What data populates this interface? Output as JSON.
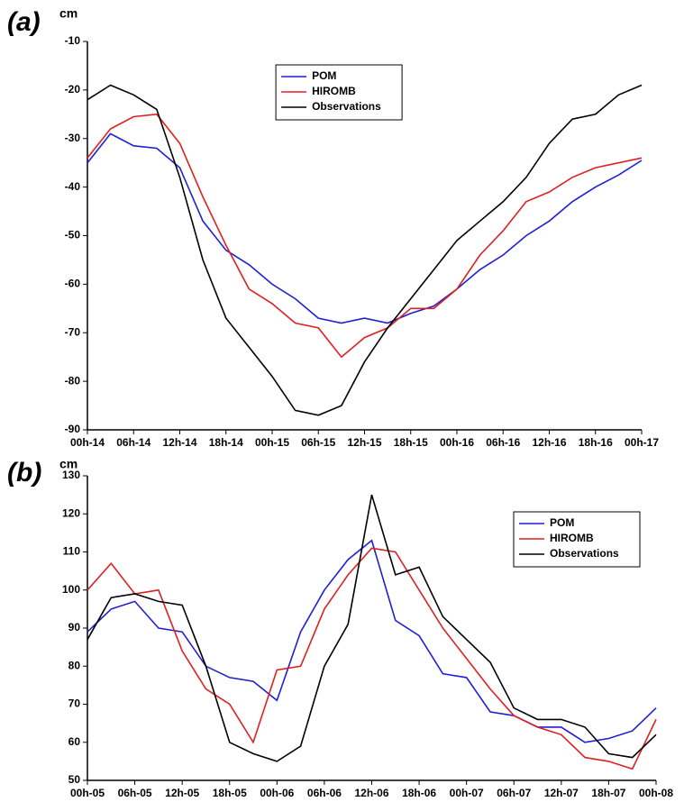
{
  "chart_data": [
    {
      "type": "line",
      "panel_label": "(a)",
      "ylabel": "cm",
      "x": [
        0,
        3,
        6,
        9,
        12,
        15,
        18,
        21,
        24,
        27,
        30,
        33,
        36,
        39,
        42,
        45,
        48,
        51,
        54,
        57,
        60,
        63,
        66,
        69,
        72
      ],
      "xlim": [
        0,
        72
      ],
      "xticks": [
        {
          "value": 0,
          "label": "00h-14"
        },
        {
          "value": 6,
          "label": "06h-14"
        },
        {
          "value": 12,
          "label": "12h-14"
        },
        {
          "value": 18,
          "label": "18h-14"
        },
        {
          "value": 24,
          "label": "00h-15"
        },
        {
          "value": 30,
          "label": "06h-15"
        },
        {
          "value": 36,
          "label": "12h-15"
        },
        {
          "value": 42,
          "label": "18h-15"
        },
        {
          "value": 48,
          "label": "00h-16"
        },
        {
          "value": 54,
          "label": "06h-16"
        },
        {
          "value": 60,
          "label": "12h-16"
        },
        {
          "value": 66,
          "label": "18h-16"
        },
        {
          "value": 72,
          "label": "00h-17"
        }
      ],
      "ylim": [
        -90,
        -10
      ],
      "yticks": [
        -90,
        -80,
        -70,
        -60,
        -50,
        -40,
        -30,
        -20,
        -10
      ],
      "legend": "upper center",
      "series": [
        {
          "name": "POM",
          "color": "#1f1fd6",
          "values": [
            -35,
            -29,
            -31.5,
            -32,
            -36,
            -47,
            -53,
            -56,
            -60,
            -63,
            -67,
            -68,
            -67,
            -68,
            -66,
            -64.5,
            -61,
            -57,
            -54,
            -50,
            -47,
            -43,
            -40,
            -37.5,
            -34.5
          ]
        },
        {
          "name": "HIROMB",
          "color": "#e02020",
          "values": [
            -34,
            -28,
            -25.5,
            -25,
            -31,
            -42,
            -52,
            -61,
            -64,
            -68,
            -69,
            -75,
            -71,
            -69,
            -65,
            -65,
            -61,
            -54,
            -49,
            -43,
            -41,
            -38,
            -36,
            -35,
            -34
          ]
        },
        {
          "name": "Observations",
          "color": "#000000",
          "values": [
            -22,
            -19,
            -21,
            -24,
            -38,
            -55,
            -67,
            -73,
            -79,
            -86,
            -87,
            -85,
            -76,
            -69,
            -63,
            -57,
            -51,
            -47,
            -43,
            -38,
            -31,
            -26,
            -25,
            -21,
            -19
          ]
        }
      ]
    },
    {
      "type": "line",
      "panel_label": "(b)",
      "ylabel": "cm",
      "x": [
        0,
        3,
        6,
        9,
        12,
        15,
        18,
        21,
        24,
        27,
        30,
        33,
        36,
        39,
        42,
        45,
        48,
        51,
        54,
        57,
        60,
        63,
        66,
        69,
        72
      ],
      "xlim": [
        0,
        72
      ],
      "xticks": [
        {
          "value": 0,
          "label": "00h-05"
        },
        {
          "value": 6,
          "label": "06h-05"
        },
        {
          "value": 12,
          "label": "12h-05"
        },
        {
          "value": 18,
          "label": "18h-05"
        },
        {
          "value": 24,
          "label": "00h-06"
        },
        {
          "value": 30,
          "label": "06h-06"
        },
        {
          "value": 36,
          "label": "12h-06"
        },
        {
          "value": 42,
          "label": "18h-06"
        },
        {
          "value": 48,
          "label": "00h-07"
        },
        {
          "value": 54,
          "label": "06h-07"
        },
        {
          "value": 60,
          "label": "12h-07"
        },
        {
          "value": 66,
          "label": "18h-07"
        },
        {
          "value": 72,
          "label": "00h-08"
        }
      ],
      "ylim": [
        50,
        130
      ],
      "yticks": [
        50,
        60,
        70,
        80,
        90,
        100,
        110,
        120,
        130
      ],
      "legend": "upper right",
      "series": [
        {
          "name": "POM",
          "color": "#1f1fd6",
          "values": [
            89,
            95,
            97,
            90,
            89,
            80,
            77,
            76,
            71,
            89,
            100,
            108,
            113,
            92,
            88,
            78,
            77,
            68,
            67,
            64,
            64,
            60,
            61,
            63,
            69
          ]
        },
        {
          "name": "HIROMB",
          "color": "#e02020",
          "values": [
            100,
            107,
            99,
            100,
            84,
            74,
            70,
            60,
            79,
            80,
            95,
            104,
            111,
            110,
            100,
            90,
            82,
            74,
            67,
            64,
            62,
            56,
            55,
            53,
            66
          ]
        },
        {
          "name": "Observations",
          "color": "#000000",
          "values": [
            87,
            98,
            99,
            97,
            96,
            80,
            60,
            57,
            55,
            59,
            80,
            91,
            125,
            104,
            106,
            93,
            87,
            81,
            69,
            66,
            66,
            64,
            57,
            56,
            62
          ]
        }
      ]
    }
  ]
}
